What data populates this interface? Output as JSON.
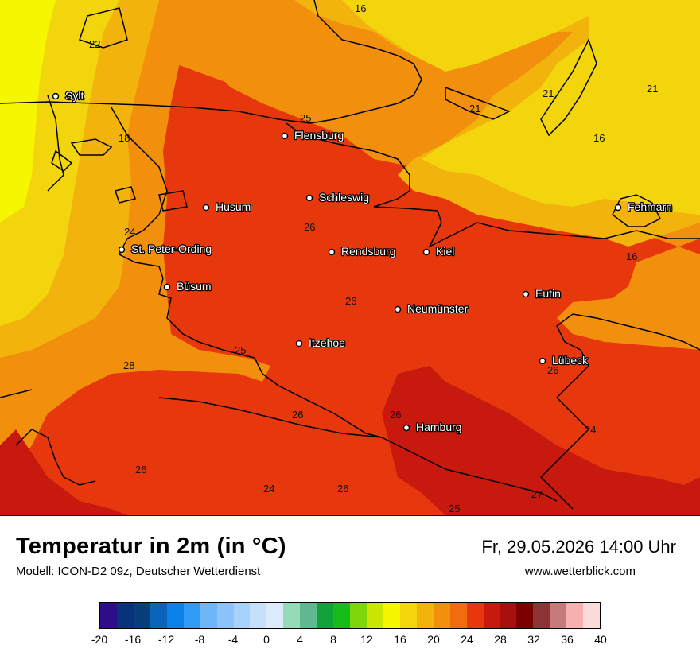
{
  "map": {
    "cities": [
      {
        "name": "Sylt"
      },
      {
        "name": "Flensburg"
      },
      {
        "name": "Schleswig"
      },
      {
        "name": "Husum"
      },
      {
        "name": "Fehmarn"
      },
      {
        "name": "St. Peter-Ording"
      },
      {
        "name": "Rendsburg"
      },
      {
        "name": "Kiel"
      },
      {
        "name": "Büsum"
      },
      {
        "name": "Eutin"
      },
      {
        "name": "Neumünster"
      },
      {
        "name": "Itzehoe"
      },
      {
        "name": "Lübeck"
      },
      {
        "name": "Hamburg"
      }
    ],
    "isotherm_labels": [
      "16",
      "22",
      "21",
      "21",
      "21",
      "25",
      "18",
      "16",
      "26",
      "24",
      "16",
      "26",
      "25",
      "28",
      "26",
      "26",
      "26",
      "24",
      "26",
      "24",
      "26",
      "27",
      "25"
    ]
  },
  "footer": {
    "title": "Temperatur in 2m (in °C)",
    "model": "Modell: ICON-D2 09z, Deutscher Wetterdienst",
    "datetime": "Fr, 29.05.2026 14:00 Uhr",
    "website": "www.wetterblick.com"
  },
  "legend": {
    "unit": "°C",
    "min": -20,
    "max": 40,
    "tick_labels": [
      "-20",
      "-16",
      "-12",
      "-8",
      "-4",
      "0",
      "4",
      "8",
      "12",
      "16",
      "20",
      "24",
      "28",
      "32",
      "36",
      "40"
    ],
    "colors": [
      "#2e0d8a",
      "#08337a",
      "#083e7c",
      "#0a64b8",
      "#0a82e8",
      "#2f9bf6",
      "#6fb6f8",
      "#8cc3f8",
      "#a9d2fa",
      "#c6e0fb",
      "#dcebfc",
      "#94dcb8",
      "#5fb890",
      "#11a339",
      "#16bd16",
      "#7fd60b",
      "#c9e701",
      "#f6f600",
      "#f2d50c",
      "#f2b30c",
      "#f28f0d",
      "#f06c0e",
      "#e6370d",
      "#c8190f",
      "#a80f0f",
      "#7c0000",
      "#8c3333",
      "#c67a7a",
      "#f7b0b0",
      "#fbdcdc"
    ]
  }
}
